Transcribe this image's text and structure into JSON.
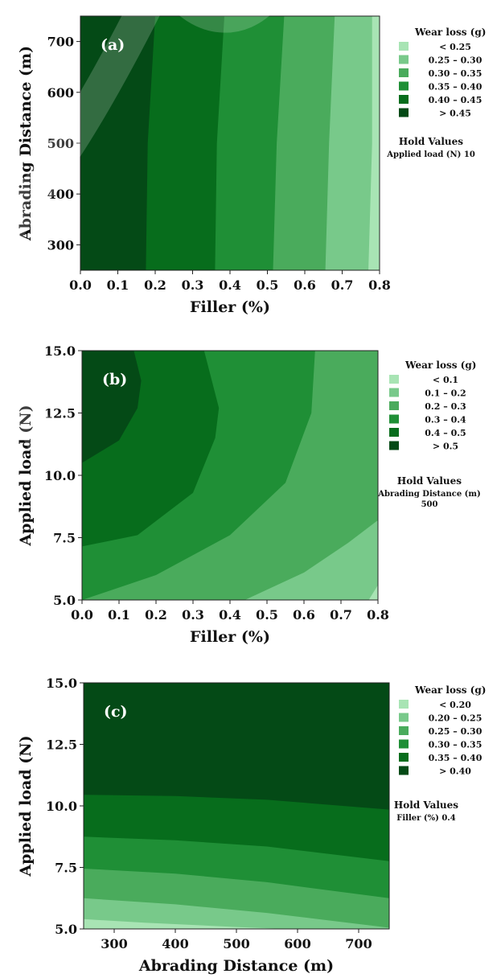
{
  "chart_data": [
    {
      "type": "contour",
      "panel_label": "(a)",
      "xlabel": "Filler (%)",
      "ylabel": "Abrading Distance (m)",
      "xlim": [
        0.0,
        0.8
      ],
      "ylim": [
        250,
        750
      ],
      "x_ticks": [
        "0.0",
        "0.1",
        "0.2",
        "0.3",
        "0.4",
        "0.5",
        "0.6",
        "0.7",
        "0.8"
      ],
      "y_ticks": [
        "300",
        "400",
        "500",
        "600",
        "700"
      ],
      "legend_title": "Wear loss (g)",
      "legend": [
        {
          "label": "<  0.25",
          "color": "#a8e4b4"
        },
        {
          "label": "0.25  –  0.30",
          "color": "#78c98a"
        },
        {
          "label": "0.30  –  0.35",
          "color": "#4aab5c"
        },
        {
          "label": "0.35  –  0.40",
          "color": "#1f8f36"
        },
        {
          "label": "0.40  –  0.45",
          "color": "#076d1c"
        },
        {
          "label": ">  0.45",
          "color": "#044a16"
        }
      ],
      "hold_title": "Hold Values",
      "hold_lines": [
        "Applied load (N)   10"
      ],
      "boundaries": [
        [
          [
            0.77,
            250
          ],
          [
            0.78,
            500
          ],
          [
            0.78,
            750
          ]
        ],
        [
          [
            0.655,
            250
          ],
          [
            0.665,
            500
          ],
          [
            0.68,
            750
          ]
        ],
        [
          [
            0.515,
            250
          ],
          [
            0.525,
            500
          ],
          [
            0.545,
            750
          ]
        ],
        [
          [
            0.36,
            250
          ],
          [
            0.365,
            500
          ],
          [
            0.385,
            750
          ]
        ],
        [
          [
            0.175,
            250
          ],
          [
            0.18,
            500
          ],
          [
            0.2,
            750
          ]
        ]
      ]
    },
    {
      "type": "contour",
      "panel_label": "(b)",
      "xlabel": "Filler (%)",
      "ylabel": "Applied load (N)",
      "xlim": [
        0.0,
        0.8
      ],
      "ylim": [
        5.0,
        15.0
      ],
      "x_ticks": [
        "0.0",
        "0.1",
        "0.2",
        "0.3",
        "0.4",
        "0.5",
        "0.6",
        "0.7",
        "0.8"
      ],
      "y_ticks": [
        "5.0",
        "7.5",
        "10.0",
        "12.5",
        "15.0"
      ],
      "legend_title": "Wear loss (g)",
      "legend": [
        {
          "label": "<  0.1",
          "color": "#a8e4b4"
        },
        {
          "label": "0.1  –  0.2",
          "color": "#78c98a"
        },
        {
          "label": "0.2  –  0.3",
          "color": "#4aab5c"
        },
        {
          "label": "0.3  –  0.4",
          "color": "#1f8f36"
        },
        {
          "label": "0.4  –  0.5",
          "color": "#076d1c"
        },
        {
          "label": ">  0.5",
          "color": "#044a16"
        }
      ],
      "hold_title": "Hold Values",
      "hold_lines": [
        "Abrading Distance (m)",
        "500"
      ],
      "boundaries": [
        [
          [
            0.775,
            5.0
          ],
          [
            0.8,
            5.6
          ]
        ],
        [
          [
            0.44,
            5.0
          ],
          [
            0.6,
            6.1
          ],
          [
            0.72,
            7.3
          ],
          [
            0.8,
            8.2
          ]
        ],
        [
          [
            0.0,
            5.0
          ],
          [
            0.2,
            6.0
          ],
          [
            0.4,
            7.6
          ],
          [
            0.55,
            9.7
          ],
          [
            0.62,
            12.5
          ],
          [
            0.63,
            15.0
          ]
        ],
        [
          [
            0.0,
            7.15
          ],
          [
            0.15,
            7.6
          ],
          [
            0.3,
            9.3
          ],
          [
            0.36,
            11.5
          ],
          [
            0.37,
            12.7
          ],
          [
            0.33,
            15.0
          ]
        ],
        [
          [
            0.0,
            10.5
          ],
          [
            0.1,
            11.4
          ],
          [
            0.15,
            12.7
          ],
          [
            0.16,
            13.8
          ],
          [
            0.14,
            15.0
          ]
        ]
      ]
    },
    {
      "type": "contour",
      "panel_label": "(c)",
      "xlabel": "Abrading Distance (m)",
      "ylabel": "Applied load (N)",
      "xlim": [
        250,
        750
      ],
      "ylim": [
        5.0,
        15.0
      ],
      "x_ticks": [
        "300",
        "400",
        "500",
        "600",
        "700"
      ],
      "y_ticks": [
        "5.0",
        "7.5",
        "10.0",
        "12.5",
        "15.0"
      ],
      "legend_title": "Wear loss (g)",
      "legend": [
        {
          "label": "<  0.20",
          "color": "#a8e4b4"
        },
        {
          "label": "0.20  –  0.25",
          "color": "#78c98a"
        },
        {
          "label": "0.25  –  0.30",
          "color": "#4aab5c"
        },
        {
          "label": "0.30  –  0.35",
          "color": "#1f8f36"
        },
        {
          "label": "0.35  –  0.40",
          "color": "#076d1c"
        },
        {
          "label": ">  0.40",
          "color": "#044a16"
        }
      ],
      "hold_title": "Hold Values",
      "hold_lines": [
        "Filler (%)   0.4"
      ],
      "boundaries": [
        [
          [
            250,
            5.4
          ],
          [
            350,
            5.25
          ],
          [
            500,
            5.08
          ],
          [
            580,
            5.0
          ]
        ],
        [
          [
            250,
            6.25
          ],
          [
            400,
            6.0
          ],
          [
            550,
            5.65
          ],
          [
            750,
            5.05
          ]
        ],
        [
          [
            250,
            7.45
          ],
          [
            400,
            7.25
          ],
          [
            550,
            6.9
          ],
          [
            750,
            6.25
          ]
        ],
        [
          [
            250,
            8.75
          ],
          [
            400,
            8.6
          ],
          [
            550,
            8.35
          ],
          [
            750,
            7.75
          ]
        ],
        [
          [
            250,
            10.45
          ],
          [
            400,
            10.4
          ],
          [
            550,
            10.25
          ],
          [
            750,
            9.85
          ]
        ]
      ]
    }
  ]
}
